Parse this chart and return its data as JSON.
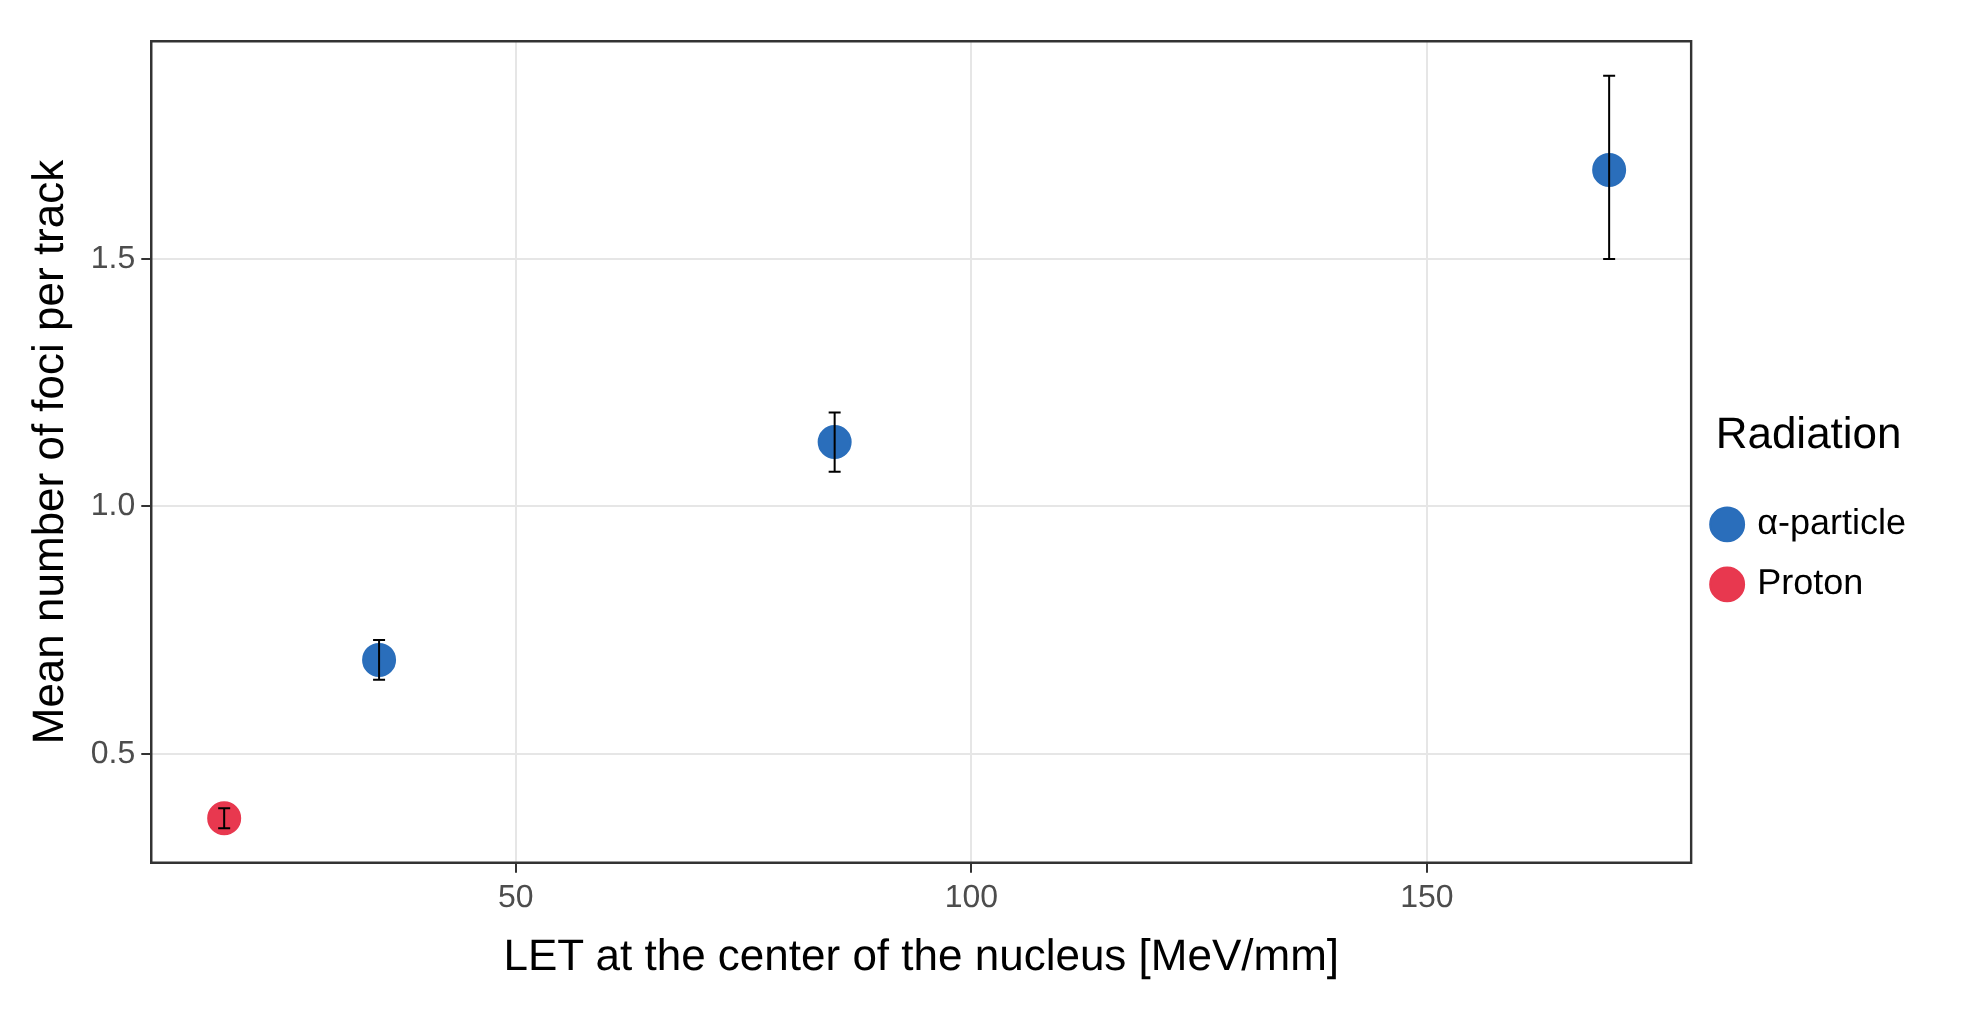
{
  "chart_data": {
    "type": "scatter",
    "xlabel": "LET at the center of the nucleus [MeV/mm]",
    "ylabel": "Mean number of foci per track",
    "legend_title": "Radiation",
    "series": [
      {
        "name": "α-particle",
        "color": "#2a6ebb",
        "x": [
          35,
          85,
          170
        ],
        "values": [
          0.69,
          1.13,
          1.68
        ],
        "errors": [
          [
            0.65,
            0.73
          ],
          [
            1.07,
            1.19
          ],
          [
            1.5,
            1.87
          ]
        ]
      },
      {
        "name": "Proton",
        "color": "#e8384f",
        "x": [
          18
        ],
        "values": [
          0.37
        ],
        "errors": [
          [
            0.35,
            0.39
          ]
        ]
      }
    ],
    "xlim": [
      10,
      179
    ],
    "ylim": [
      0.28,
      1.94
    ],
    "xticks": [
      50,
      100,
      150
    ],
    "yticks": [
      0.5,
      {
        "value": 1,
        "label": "1.0"
      },
      1.5
    ],
    "grid": true,
    "legend": "right",
    "marker": "circle"
  }
}
